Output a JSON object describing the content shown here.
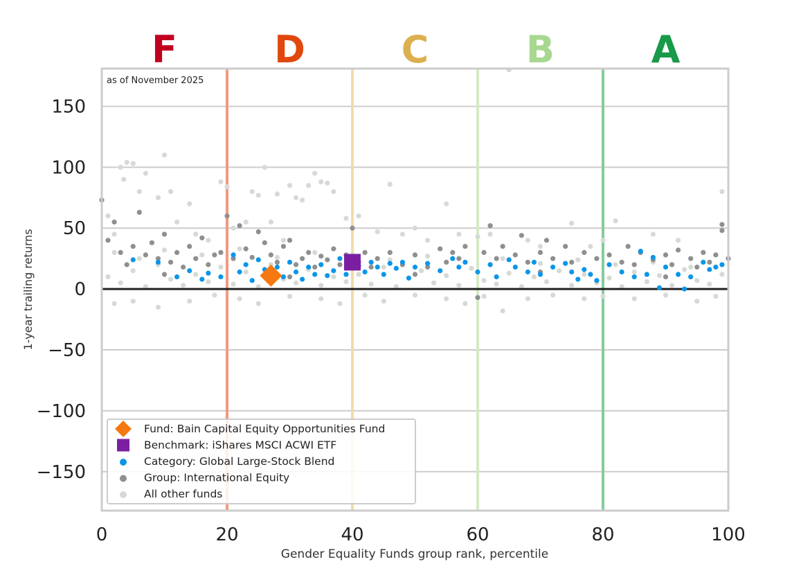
{
  "chart_data": {
    "type": "scatter",
    "annotation": "as of November 2025",
    "xlabel": "Gender Equality Funds group rank, percentile",
    "ylabel": "1-year trailing returns",
    "xlim": [
      0,
      100
    ],
    "ylim": [
      -182,
      181
    ],
    "xticks": [
      "0",
      "20",
      "40",
      "60",
      "80",
      "100"
    ],
    "yticks": [
      "150",
      "100",
      "50",
      "0",
      "−50",
      "−100",
      "−150"
    ],
    "ytick_values": [
      150,
      100,
      50,
      0,
      -50,
      -100,
      -150
    ],
    "grid": "horizontal",
    "zero_line": true,
    "legend_position": "lower-left",
    "grades": [
      {
        "label": "F",
        "x": 10,
        "color": "#c1001f"
      },
      {
        "label": "D",
        "x": 30,
        "color": "#e0480e"
      },
      {
        "label": "C",
        "x": 50,
        "color": "#dcb050"
      },
      {
        "label": "B",
        "x": 70,
        "color": "#a8d890"
      },
      {
        "label": "A",
        "x": 90,
        "color": "#189a48"
      }
    ],
    "grade_lines": [
      {
        "x": 20,
        "color": "#ef9a80"
      },
      {
        "x": 40,
        "color": "#f2dba6"
      },
      {
        "x": 60,
        "color": "#d4eac4"
      },
      {
        "x": 80,
        "color": "#84cc9c"
      }
    ],
    "series": [
      {
        "name": "All other funds",
        "color": "#d6dad4",
        "marker": "circle",
        "points": [
          [
            1,
            60
          ],
          [
            2,
            45
          ],
          [
            3,
            100
          ],
          [
            3.5,
            90
          ],
          [
            4,
            104
          ],
          [
            5,
            103
          ],
          [
            6,
            80
          ],
          [
            7,
            95
          ],
          [
            9,
            75
          ],
          [
            10,
            110
          ],
          [
            11,
            80
          ],
          [
            12,
            55
          ],
          [
            14,
            70
          ],
          [
            15,
            45
          ],
          [
            17,
            40
          ],
          [
            19,
            88
          ],
          [
            20,
            84
          ],
          [
            21,
            50
          ],
          [
            23,
            55
          ],
          [
            24,
            80
          ],
          [
            25,
            77
          ],
          [
            26,
            100
          ],
          [
            27,
            55
          ],
          [
            28,
            78
          ],
          [
            29,
            40
          ],
          [
            30,
            85
          ],
          [
            31,
            75
          ],
          [
            32,
            73
          ],
          [
            33,
            85
          ],
          [
            34,
            95
          ],
          [
            35,
            88
          ],
          [
            36,
            87
          ],
          [
            37,
            80
          ],
          [
            39,
            58
          ],
          [
            41,
            60
          ],
          [
            44,
            47
          ],
          [
            46,
            86
          ],
          [
            48,
            45
          ],
          [
            50,
            50
          ],
          [
            52,
            40
          ],
          [
            55,
            70
          ],
          [
            57,
            45
          ],
          [
            60,
            43
          ],
          [
            62,
            45
          ],
          [
            65,
            180
          ],
          [
            68,
            40
          ],
          [
            70,
            35
          ],
          [
            75,
            54
          ],
          [
            78,
            35
          ],
          [
            80,
            40
          ],
          [
            82,
            56
          ],
          [
            88,
            45
          ],
          [
            92,
            40
          ],
          [
            99,
            80
          ],
          [
            2,
            -12
          ],
          [
            5,
            -10
          ],
          [
            9,
            -15
          ],
          [
            14,
            -10
          ],
          [
            18,
            -5
          ],
          [
            22,
            -8
          ],
          [
            25,
            -12
          ],
          [
            30,
            -6
          ],
          [
            35,
            -8
          ],
          [
            38,
            -12
          ],
          [
            42,
            -5
          ],
          [
            45,
            -10
          ],
          [
            50,
            -5
          ],
          [
            55,
            -8
          ],
          [
            58,
            -12
          ],
          [
            61,
            -6
          ],
          [
            64,
            -18
          ],
          [
            68,
            -8
          ],
          [
            72,
            -5
          ],
          [
            77,
            -8
          ],
          [
            80,
            -6
          ],
          [
            85,
            -8
          ],
          [
            90,
            -5
          ],
          [
            95,
            -10
          ],
          [
            98,
            -6
          ],
          [
            1,
            10
          ],
          [
            3,
            5
          ],
          [
            5,
            15
          ],
          [
            7,
            2
          ],
          [
            9,
            20
          ],
          [
            11,
            8
          ],
          [
            13,
            3
          ],
          [
            15,
            12
          ],
          [
            17,
            6
          ],
          [
            19,
            18
          ],
          [
            21,
            4
          ],
          [
            23,
            14
          ],
          [
            25,
            2
          ],
          [
            27,
            20
          ],
          [
            29,
            8
          ],
          [
            31,
            5
          ],
          [
            33,
            16
          ],
          [
            35,
            3
          ],
          [
            37,
            10
          ],
          [
            39,
            6
          ],
          [
            41,
            12
          ],
          [
            43,
            4
          ],
          [
            45,
            18
          ],
          [
            47,
            2
          ],
          [
            49,
            9
          ],
          [
            51,
            15
          ],
          [
            53,
            5
          ],
          [
            55,
            11
          ],
          [
            57,
            3
          ],
          [
            59,
            17
          ],
          [
            61,
            7
          ],
          [
            63,
            4
          ],
          [
            65,
            13
          ],
          [
            67,
            2
          ],
          [
            69,
            10
          ],
          [
            71,
            6
          ],
          [
            73,
            15
          ],
          [
            75,
            3
          ],
          [
            77,
            12
          ],
          [
            79,
            5
          ],
          [
            81,
            9
          ],
          [
            83,
            2
          ],
          [
            85,
            14
          ],
          [
            87,
            6
          ],
          [
            89,
            11
          ],
          [
            91,
            3
          ],
          [
            93,
            16
          ],
          [
            95,
            7
          ],
          [
            97,
            4
          ],
          [
            99,
            12
          ],
          [
            2,
            30
          ],
          [
            6,
            25
          ],
          [
            10,
            32
          ],
          [
            16,
            28
          ],
          [
            22,
            33
          ],
          [
            28,
            26
          ],
          [
            34,
            30
          ],
          [
            40,
            28
          ],
          [
            46,
            24
          ],
          [
            52,
            27
          ],
          [
            58,
            22
          ],
          [
            64,
            25
          ],
          [
            70,
            21
          ],
          [
            76,
            24
          ],
          [
            82,
            20
          ],
          [
            88,
            22
          ],
          [
            94,
            18
          ],
          [
            99,
            20
          ]
        ]
      },
      {
        "name": "Group: International Equity",
        "color": "#8f8f8f",
        "marker": "circle",
        "points": [
          [
            0,
            73
          ],
          [
            1,
            40
          ],
          [
            2,
            55
          ],
          [
            3,
            30
          ],
          [
            4,
            20
          ],
          [
            5,
            35
          ],
          [
            6,
            63
          ],
          [
            7,
            28
          ],
          [
            8,
            38
          ],
          [
            9,
            25
          ],
          [
            10,
            45
          ],
          [
            11,
            22
          ],
          [
            12,
            30
          ],
          [
            13,
            18
          ],
          [
            14,
            35
          ],
          [
            15,
            25
          ],
          [
            16,
            42
          ],
          [
            17,
            20
          ],
          [
            18,
            28
          ],
          [
            19,
            30
          ],
          [
            20,
            60
          ],
          [
            21,
            25
          ],
          [
            22,
            52
          ],
          [
            23,
            33
          ],
          [
            24,
            26
          ],
          [
            25,
            47
          ],
          [
            26,
            38
          ],
          [
            27,
            28
          ],
          [
            28,
            22
          ],
          [
            29,
            35
          ],
          [
            30,
            40
          ],
          [
            31,
            20
          ],
          [
            32,
            25
          ],
          [
            33,
            30
          ],
          [
            34,
            18
          ],
          [
            35,
            27
          ],
          [
            36,
            24
          ],
          [
            37,
            33
          ],
          [
            38,
            20
          ],
          [
            39,
            28
          ],
          [
            40,
            50
          ],
          [
            41,
            22
          ],
          [
            42,
            30
          ],
          [
            43,
            18
          ],
          [
            44,
            25
          ],
          [
            46,
            30
          ],
          [
            48,
            20
          ],
          [
            50,
            28
          ],
          [
            52,
            18
          ],
          [
            54,
            33
          ],
          [
            55,
            22
          ],
          [
            56,
            30
          ],
          [
            57,
            25
          ],
          [
            58,
            35
          ],
          [
            60,
            -7
          ],
          [
            61,
            30
          ],
          [
            62,
            52
          ],
          [
            63,
            25
          ],
          [
            64,
            35
          ],
          [
            66,
            28
          ],
          [
            67,
            44
          ],
          [
            68,
            22
          ],
          [
            70,
            30
          ],
          [
            71,
            40
          ],
          [
            72,
            25
          ],
          [
            74,
            35
          ],
          [
            75,
            22
          ],
          [
            77,
            30
          ],
          [
            79,
            25
          ],
          [
            81,
            28
          ],
          [
            83,
            22
          ],
          [
            84,
            35
          ],
          [
            85,
            20
          ],
          [
            86,
            30
          ],
          [
            88,
            24
          ],
          [
            90,
            28
          ],
          [
            91,
            20
          ],
          [
            92,
            32
          ],
          [
            94,
            25
          ],
          [
            95,
            18
          ],
          [
            96,
            30
          ],
          [
            97,
            22
          ],
          [
            98,
            28
          ],
          [
            99,
            53
          ],
          [
            100,
            25
          ],
          [
            99,
            48
          ],
          [
            10,
            12
          ],
          [
            30,
            10
          ],
          [
            50,
            12
          ],
          [
            70,
            14
          ],
          [
            90,
            10
          ]
        ]
      },
      {
        "name": "Category: Global Large-Stock Blend",
        "color": "#0b96e8",
        "marker": "circle",
        "points": [
          [
            5,
            24
          ],
          [
            9,
            22
          ],
          [
            12,
            10
          ],
          [
            14,
            15
          ],
          [
            16,
            8
          ],
          [
            17,
            13
          ],
          [
            19,
            10
          ],
          [
            21,
            28
          ],
          [
            22,
            14
          ],
          [
            23,
            20
          ],
          [
            24,
            7
          ],
          [
            25,
            24
          ],
          [
            26,
            16
          ],
          [
            28,
            18
          ],
          [
            29,
            10
          ],
          [
            30,
            22
          ],
          [
            31,
            14
          ],
          [
            32,
            8
          ],
          [
            33,
            18
          ],
          [
            34,
            12
          ],
          [
            35,
            20
          ],
          [
            36,
            11
          ],
          [
            37,
            15
          ],
          [
            38,
            25
          ],
          [
            39,
            12
          ],
          [
            41,
            19
          ],
          [
            42,
            14
          ],
          [
            43,
            22
          ],
          [
            44,
            18
          ],
          [
            45,
            12
          ],
          [
            46,
            21
          ],
          [
            47,
            17
          ],
          [
            48,
            22
          ],
          [
            49,
            9
          ],
          [
            50,
            18
          ],
          [
            52,
            21
          ],
          [
            54,
            15
          ],
          [
            56,
            25
          ],
          [
            57,
            18
          ],
          [
            58,
            22
          ],
          [
            60,
            14
          ],
          [
            62,
            20
          ],
          [
            63,
            10
          ],
          [
            65,
            24
          ],
          [
            66,
            18
          ],
          [
            68,
            14
          ],
          [
            69,
            22
          ],
          [
            70,
            12
          ],
          [
            72,
            18
          ],
          [
            74,
            21
          ],
          [
            75,
            14
          ],
          [
            76,
            8
          ],
          [
            77,
            16
          ],
          [
            78,
            12
          ],
          [
            79,
            7
          ],
          [
            81,
            20
          ],
          [
            83,
            14
          ],
          [
            85,
            10
          ],
          [
            87,
            12
          ],
          [
            88,
            26
          ],
          [
            90,
            18
          ],
          [
            92,
            12
          ],
          [
            94,
            10
          ],
          [
            96,
            22
          ],
          [
            97,
            16
          ],
          [
            98,
            18
          ],
          [
            99,
            20
          ],
          [
            89,
            1
          ],
          [
            93,
            0
          ],
          [
            86,
            31
          ]
        ]
      },
      {
        "name": "Benchmark: iShares MSCI ACWI ETF",
        "color": "#7b1fa2",
        "marker": "square",
        "points": [
          [
            40,
            22
          ]
        ]
      },
      {
        "name": "Fund: Bain Capital Equity Opportunities Fund",
        "color": "#f57910",
        "marker": "diamond",
        "points": [
          [
            27,
            11
          ]
        ]
      }
    ],
    "legend_order": [
      4,
      3,
      2,
      1,
      0
    ]
  }
}
